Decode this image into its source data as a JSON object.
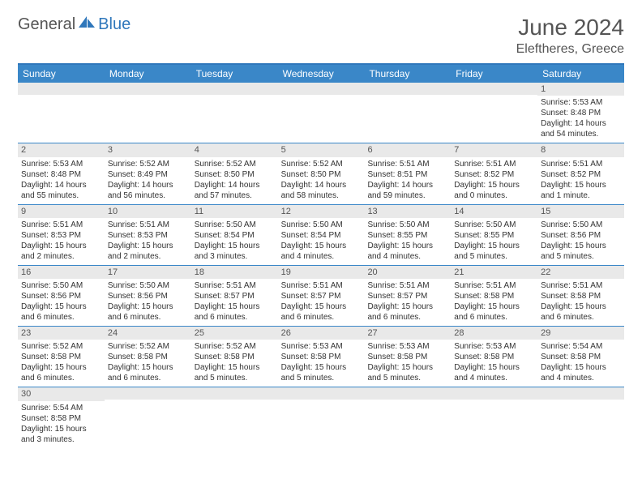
{
  "logo": {
    "text_general": "General",
    "text_blue": "Blue"
  },
  "header": {
    "month": "June 2024",
    "location": "Eleftheres, Greece"
  },
  "colors": {
    "header_bg": "#3a87c8",
    "header_border": "#2f77bb",
    "daynum_bg": "#e9e9e9",
    "row_border": "#3a87c8",
    "logo_blue": "#2f77bb"
  },
  "day_names": [
    "Sunday",
    "Monday",
    "Tuesday",
    "Wednesday",
    "Thursday",
    "Friday",
    "Saturday"
  ],
  "weeks": [
    [
      {
        "empty": true
      },
      {
        "empty": true
      },
      {
        "empty": true
      },
      {
        "empty": true
      },
      {
        "empty": true
      },
      {
        "empty": true
      },
      {
        "n": "1",
        "sunrise": "Sunrise: 5:53 AM",
        "sunset": "Sunset: 8:48 PM",
        "dl1": "Daylight: 14 hours",
        "dl2": "and 54 minutes."
      }
    ],
    [
      {
        "n": "2",
        "sunrise": "Sunrise: 5:53 AM",
        "sunset": "Sunset: 8:48 PM",
        "dl1": "Daylight: 14 hours",
        "dl2": "and 55 minutes."
      },
      {
        "n": "3",
        "sunrise": "Sunrise: 5:52 AM",
        "sunset": "Sunset: 8:49 PM",
        "dl1": "Daylight: 14 hours",
        "dl2": "and 56 minutes."
      },
      {
        "n": "4",
        "sunrise": "Sunrise: 5:52 AM",
        "sunset": "Sunset: 8:50 PM",
        "dl1": "Daylight: 14 hours",
        "dl2": "and 57 minutes."
      },
      {
        "n": "5",
        "sunrise": "Sunrise: 5:52 AM",
        "sunset": "Sunset: 8:50 PM",
        "dl1": "Daylight: 14 hours",
        "dl2": "and 58 minutes."
      },
      {
        "n": "6",
        "sunrise": "Sunrise: 5:51 AM",
        "sunset": "Sunset: 8:51 PM",
        "dl1": "Daylight: 14 hours",
        "dl2": "and 59 minutes."
      },
      {
        "n": "7",
        "sunrise": "Sunrise: 5:51 AM",
        "sunset": "Sunset: 8:52 PM",
        "dl1": "Daylight: 15 hours",
        "dl2": "and 0 minutes."
      },
      {
        "n": "8",
        "sunrise": "Sunrise: 5:51 AM",
        "sunset": "Sunset: 8:52 PM",
        "dl1": "Daylight: 15 hours",
        "dl2": "and 1 minute."
      }
    ],
    [
      {
        "n": "9",
        "sunrise": "Sunrise: 5:51 AM",
        "sunset": "Sunset: 8:53 PM",
        "dl1": "Daylight: 15 hours",
        "dl2": "and 2 minutes."
      },
      {
        "n": "10",
        "sunrise": "Sunrise: 5:51 AM",
        "sunset": "Sunset: 8:53 PM",
        "dl1": "Daylight: 15 hours",
        "dl2": "and 2 minutes."
      },
      {
        "n": "11",
        "sunrise": "Sunrise: 5:50 AM",
        "sunset": "Sunset: 8:54 PM",
        "dl1": "Daylight: 15 hours",
        "dl2": "and 3 minutes."
      },
      {
        "n": "12",
        "sunrise": "Sunrise: 5:50 AM",
        "sunset": "Sunset: 8:54 PM",
        "dl1": "Daylight: 15 hours",
        "dl2": "and 4 minutes."
      },
      {
        "n": "13",
        "sunrise": "Sunrise: 5:50 AM",
        "sunset": "Sunset: 8:55 PM",
        "dl1": "Daylight: 15 hours",
        "dl2": "and 4 minutes."
      },
      {
        "n": "14",
        "sunrise": "Sunrise: 5:50 AM",
        "sunset": "Sunset: 8:55 PM",
        "dl1": "Daylight: 15 hours",
        "dl2": "and 5 minutes."
      },
      {
        "n": "15",
        "sunrise": "Sunrise: 5:50 AM",
        "sunset": "Sunset: 8:56 PM",
        "dl1": "Daylight: 15 hours",
        "dl2": "and 5 minutes."
      }
    ],
    [
      {
        "n": "16",
        "sunrise": "Sunrise: 5:50 AM",
        "sunset": "Sunset: 8:56 PM",
        "dl1": "Daylight: 15 hours",
        "dl2": "and 6 minutes."
      },
      {
        "n": "17",
        "sunrise": "Sunrise: 5:50 AM",
        "sunset": "Sunset: 8:56 PM",
        "dl1": "Daylight: 15 hours",
        "dl2": "and 6 minutes."
      },
      {
        "n": "18",
        "sunrise": "Sunrise: 5:51 AM",
        "sunset": "Sunset: 8:57 PM",
        "dl1": "Daylight: 15 hours",
        "dl2": "and 6 minutes."
      },
      {
        "n": "19",
        "sunrise": "Sunrise: 5:51 AM",
        "sunset": "Sunset: 8:57 PM",
        "dl1": "Daylight: 15 hours",
        "dl2": "and 6 minutes."
      },
      {
        "n": "20",
        "sunrise": "Sunrise: 5:51 AM",
        "sunset": "Sunset: 8:57 PM",
        "dl1": "Daylight: 15 hours",
        "dl2": "and 6 minutes."
      },
      {
        "n": "21",
        "sunrise": "Sunrise: 5:51 AM",
        "sunset": "Sunset: 8:58 PM",
        "dl1": "Daylight: 15 hours",
        "dl2": "and 6 minutes."
      },
      {
        "n": "22",
        "sunrise": "Sunrise: 5:51 AM",
        "sunset": "Sunset: 8:58 PM",
        "dl1": "Daylight: 15 hours",
        "dl2": "and 6 minutes."
      }
    ],
    [
      {
        "n": "23",
        "sunrise": "Sunrise: 5:52 AM",
        "sunset": "Sunset: 8:58 PM",
        "dl1": "Daylight: 15 hours",
        "dl2": "and 6 minutes."
      },
      {
        "n": "24",
        "sunrise": "Sunrise: 5:52 AM",
        "sunset": "Sunset: 8:58 PM",
        "dl1": "Daylight: 15 hours",
        "dl2": "and 6 minutes."
      },
      {
        "n": "25",
        "sunrise": "Sunrise: 5:52 AM",
        "sunset": "Sunset: 8:58 PM",
        "dl1": "Daylight: 15 hours",
        "dl2": "and 5 minutes."
      },
      {
        "n": "26",
        "sunrise": "Sunrise: 5:53 AM",
        "sunset": "Sunset: 8:58 PM",
        "dl1": "Daylight: 15 hours",
        "dl2": "and 5 minutes."
      },
      {
        "n": "27",
        "sunrise": "Sunrise: 5:53 AM",
        "sunset": "Sunset: 8:58 PM",
        "dl1": "Daylight: 15 hours",
        "dl2": "and 5 minutes."
      },
      {
        "n": "28",
        "sunrise": "Sunrise: 5:53 AM",
        "sunset": "Sunset: 8:58 PM",
        "dl1": "Daylight: 15 hours",
        "dl2": "and 4 minutes."
      },
      {
        "n": "29",
        "sunrise": "Sunrise: 5:54 AM",
        "sunset": "Sunset: 8:58 PM",
        "dl1": "Daylight: 15 hours",
        "dl2": "and 4 minutes."
      }
    ],
    [
      {
        "n": "30",
        "sunrise": "Sunrise: 5:54 AM",
        "sunset": "Sunset: 8:58 PM",
        "dl1": "Daylight: 15 hours",
        "dl2": "and 3 minutes."
      },
      {
        "empty": true
      },
      {
        "empty": true
      },
      {
        "empty": true
      },
      {
        "empty": true
      },
      {
        "empty": true
      },
      {
        "empty": true
      }
    ]
  ]
}
